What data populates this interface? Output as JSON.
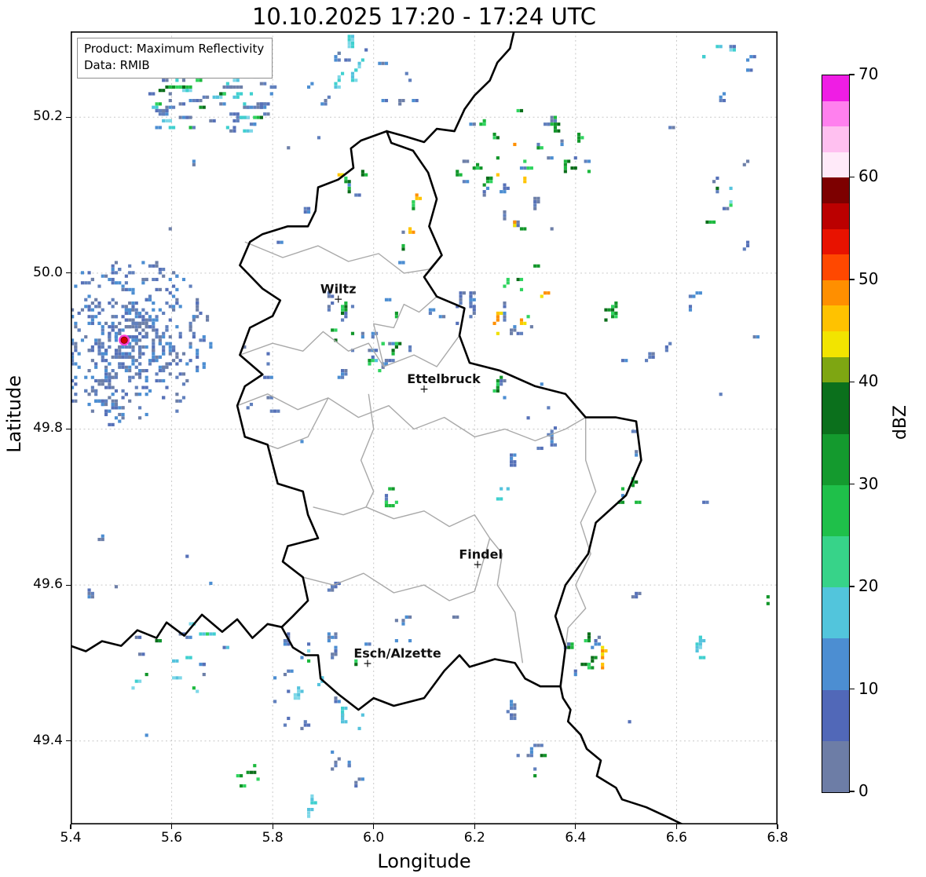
{
  "title": "10.10.2025 17:20 - 17:24 UTC",
  "info_box": {
    "product": "Product: Maximum Reflectivity",
    "data": "Data: RMIB"
  },
  "axes": {
    "xlabel": "Longitude",
    "ylabel": "Latitude",
    "xlim": [
      5.4,
      6.8
    ],
    "ylim": [
      49.293,
      50.31
    ],
    "xticks": [
      "5.4",
      "5.6",
      "5.8",
      "6.0",
      "6.2",
      "6.4",
      "6.6",
      "6.8"
    ],
    "yticks": [
      "49.4",
      "49.6",
      "49.8",
      "50.0",
      "50.2"
    ],
    "grid_color": "#c9c9c9"
  },
  "colorbar": {
    "label": "dBZ",
    "min": 0,
    "max": 70,
    "ticks": [
      0,
      10,
      20,
      30,
      40,
      50,
      60,
      70
    ],
    "segments": [
      [
        0,
        5,
        "#6d7da6"
      ],
      [
        5,
        10,
        "#5168b8"
      ],
      [
        10,
        15,
        "#4c8ed2"
      ],
      [
        15,
        20,
        "#52c5dc"
      ],
      [
        20,
        25,
        "#37d389"
      ],
      [
        25,
        30,
        "#1fc04a"
      ],
      [
        30,
        35,
        "#149a2e"
      ],
      [
        35,
        40,
        "#0b701c"
      ],
      [
        40,
        42.5,
        "#7ea612"
      ],
      [
        42.5,
        45,
        "#f2e400"
      ],
      [
        45,
        47.5,
        "#ffc200"
      ],
      [
        47.5,
        50,
        "#ff8f00"
      ],
      [
        50,
        52.5,
        "#ff4800"
      ],
      [
        52.5,
        55,
        "#e81200"
      ],
      [
        55,
        57.5,
        "#bb0000"
      ],
      [
        57.5,
        60,
        "#7d0000"
      ],
      [
        60,
        62.5,
        "#ffeaf9"
      ],
      [
        62.5,
        65,
        "#ffc0f0"
      ],
      [
        65,
        67.5,
        "#ff80ee"
      ],
      [
        67.5,
        70,
        "#ef1de4"
      ]
    ]
  },
  "map": {
    "cities": [
      {
        "name": "Wiltz",
        "lon": 5.93,
        "lat": 49.967,
        "label_dx": 0
      },
      {
        "name": "Ettelbruck",
        "lon": 6.1,
        "lat": 49.852,
        "label_dx": 25
      },
      {
        "name": "Findel",
        "lon": 6.206,
        "lat": 49.627,
        "label_dx": 4
      },
      {
        "name": "Esch/Alzette",
        "lon": 5.988,
        "lat": 49.5,
        "label_dx": 38
      }
    ],
    "radar_site": {
      "lon": 5.506,
      "lat": 49.914,
      "dot_color": "#d40000",
      "ring_color": "#ff3fd4"
    },
    "radar_rings": {
      "lon": 5.506,
      "lat": 49.914,
      "count": 880,
      "r_min": 12,
      "r_max": 108,
      "ring_step": 7,
      "keep": 0.5
    },
    "echo_palettes": {
      "b": [
        "#6180bd",
        "#5671b8",
        "#4c8ed2",
        "#6d7fa8"
      ],
      "c": [
        "#55c3dd",
        "#3fd0cf",
        "#7fd8e8"
      ],
      "g": [
        "#2fd45f",
        "#1cb93e",
        "#12962a",
        "#0b6e1a"
      ],
      "y": [
        "#f0e000",
        "#ffc400",
        "#ff9000"
      ]
    },
    "echo_clusters": [
      [
        5.548,
        5.797,
        50.184,
        50.265,
        70,
        "bbbbccg",
        8
      ],
      [
        5.615,
        5.703,
        50.265,
        50.3,
        8,
        "b",
        8
      ],
      [
        5.921,
        5.983,
        50.24,
        50.304,
        9,
        "bc",
        70
      ],
      [
        6.004,
        6.077,
        50.214,
        50.262,
        5,
        "b",
        70
      ],
      [
        5.925,
        5.975,
        50.095,
        50.145,
        6,
        "bgy",
        75
      ],
      [
        6.04,
        6.09,
        49.995,
        50.1,
        8,
        "bgy",
        80
      ],
      [
        6.147,
        6.357,
        50.053,
        50.209,
        30,
        "bbgggy",
        70
      ],
      [
        6.349,
        6.423,
        50.127,
        50.171,
        7,
        "bg",
        70
      ],
      [
        6.61,
        6.741,
        50.255,
        50.298,
        7,
        "bc",
        65
      ],
      [
        6.657,
        6.738,
        50.06,
        50.124,
        8,
        "gcb",
        70
      ],
      [
        6.616,
        6.644,
        49.953,
        49.98,
        3,
        "b",
        85
      ],
      [
        5.734,
        5.804,
        49.781,
        49.907,
        8,
        "b",
        20
      ],
      [
        5.901,
        6.123,
        49.867,
        49.973,
        24,
        "bbbgc",
        70
      ],
      [
        5.983,
        6.038,
        49.877,
        49.912,
        7,
        "ggb",
        70
      ],
      [
        6.123,
        6.201,
        49.927,
        49.966,
        7,
        "b",
        75
      ],
      [
        6.228,
        6.336,
        49.922,
        50.02,
        14,
        "ggbby",
        72
      ],
      [
        6.237,
        6.349,
        49.812,
        49.862,
        6,
        "bg",
        70
      ],
      [
        6.315,
        6.352,
        49.766,
        49.797,
        4,
        "b",
        70
      ],
      [
        6.455,
        6.492,
        49.936,
        49.963,
        5,
        "g",
        75
      ],
      [
        6.004,
        6.041,
        49.698,
        49.728,
        4,
        "bg",
        70
      ],
      [
        6.237,
        6.274,
        49.704,
        49.731,
        3,
        "c",
        70
      ],
      [
        6.486,
        6.517,
        49.701,
        49.736,
        5,
        "bg",
        70
      ],
      [
        5.512,
        5.714,
        49.466,
        49.555,
        22,
        "ggccb",
        15
      ],
      [
        5.801,
        5.979,
        49.416,
        49.537,
        28,
        "bbgc",
        70
      ],
      [
        6.035,
        6.069,
        49.527,
        49.559,
        5,
        "b",
        70
      ],
      [
        6.368,
        6.455,
        49.466,
        49.533,
        10,
        "ggby",
        75
      ],
      [
        6.237,
        6.274,
        49.426,
        49.459,
        4,
        "b",
        70
      ],
      [
        6.279,
        6.33,
        49.356,
        49.399,
        6,
        "gb",
        72
      ],
      [
        5.73,
        5.776,
        49.341,
        49.372,
        5,
        "g",
        20
      ],
      [
        5.913,
        5.963,
        49.364,
        49.392,
        5,
        "b",
        70
      ],
      [
        5.843,
        5.879,
        49.301,
        49.328,
        3,
        "c",
        70
      ],
      [
        6.766,
        6.803,
        49.577,
        49.6,
        3,
        "g",
        70
      ],
      [
        6.623,
        6.654,
        49.507,
        49.53,
        3,
        "c",
        70
      ],
      [
        5.42,
        6.78,
        49.31,
        50.29,
        40,
        "b",
        70
      ]
    ],
    "borders": {
      "country": [
        [
          [
            6.026,
            50.182
          ],
          [
            6.035,
            50.167
          ],
          [
            6.078,
            50.157
          ],
          [
            6.108,
            50.129
          ],
          [
            6.125,
            50.095
          ],
          [
            6.11,
            50.06
          ],
          [
            6.135,
            50.023
          ],
          [
            6.1,
            49.995
          ],
          [
            6.125,
            49.97
          ],
          [
            6.18,
            49.955
          ],
          [
            6.17,
            49.92
          ],
          [
            6.19,
            49.885
          ],
          [
            6.25,
            49.875
          ],
          [
            6.32,
            49.855
          ],
          [
            6.38,
            49.845
          ],
          [
            6.42,
            49.815
          ],
          [
            6.48,
            49.815
          ],
          [
            6.52,
            49.81
          ],
          [
            6.53,
            49.76
          ],
          [
            6.5,
            49.715
          ],
          [
            6.44,
            49.68
          ],
          [
            6.425,
            49.64
          ],
          [
            6.38,
            49.6
          ],
          [
            6.36,
            49.56
          ],
          [
            6.38,
            49.52
          ],
          [
            6.37,
            49.47
          ],
          [
            6.33,
            49.47
          ],
          [
            6.3,
            49.48
          ],
          [
            6.28,
            49.5
          ],
          [
            6.24,
            49.505
          ],
          [
            6.19,
            49.495
          ],
          [
            6.17,
            49.51
          ],
          [
            6.14,
            49.49
          ],
          [
            6.1,
            49.455
          ],
          [
            6.04,
            49.445
          ],
          [
            6.0,
            49.455
          ],
          [
            5.97,
            49.44
          ],
          [
            5.93,
            49.46
          ],
          [
            5.895,
            49.48
          ],
          [
            5.89,
            49.51
          ],
          [
            5.865,
            49.51
          ],
          [
            5.84,
            49.52
          ],
          [
            5.818,
            49.546
          ],
          [
            5.84,
            49.56
          ],
          [
            5.87,
            49.58
          ],
          [
            5.86,
            49.61
          ],
          [
            5.82,
            49.63
          ],
          [
            5.83,
            49.65
          ],
          [
            5.89,
            49.66
          ],
          [
            5.87,
            49.69
          ],
          [
            5.86,
            49.72
          ],
          [
            5.81,
            49.73
          ],
          [
            5.79,
            49.78
          ],
          [
            5.745,
            49.79
          ],
          [
            5.73,
            49.83
          ],
          [
            5.745,
            49.855
          ],
          [
            5.78,
            49.87
          ],
          [
            5.735,
            49.895
          ],
          [
            5.755,
            49.93
          ],
          [
            5.8,
            49.945
          ],
          [
            5.815,
            49.965
          ],
          [
            5.78,
            49.98
          ],
          [
            5.735,
            50.01
          ],
          [
            5.755,
            50.04
          ],
          [
            5.78,
            50.05
          ],
          [
            5.83,
            50.06
          ],
          [
            5.87,
            50.06
          ],
          [
            5.885,
            50.08
          ],
          [
            5.89,
            50.11
          ],
          [
            5.93,
            50.12
          ],
          [
            5.96,
            50.135
          ],
          [
            5.955,
            50.16
          ],
          [
            5.975,
            50.17
          ],
          [
            6.026,
            50.182
          ]
        ],
        [
          [
            6.026,
            50.182
          ],
          [
            6.065,
            50.175
          ],
          [
            6.1,
            50.168
          ],
          [
            6.125,
            50.185
          ],
          [
            6.16,
            50.182
          ],
          [
            6.18,
            50.21
          ],
          [
            6.2,
            50.228
          ],
          [
            6.23,
            50.247
          ],
          [
            6.245,
            50.27
          ],
          [
            6.27,
            50.288
          ],
          [
            6.278,
            50.31
          ]
        ],
        [
          [
            5.818,
            49.546
          ],
          [
            5.79,
            49.55
          ],
          [
            5.76,
            49.532
          ],
          [
            5.73,
            49.556
          ],
          [
            5.7,
            49.54
          ],
          [
            5.66,
            49.562
          ],
          [
            5.625,
            49.535
          ],
          [
            5.59,
            49.552
          ],
          [
            5.57,
            49.532
          ],
          [
            5.532,
            49.542
          ],
          [
            5.5,
            49.522
          ],
          [
            5.462,
            49.528
          ],
          [
            5.43,
            49.515
          ],
          [
            5.4,
            49.522
          ]
        ],
        [
          [
            6.37,
            49.47
          ],
          [
            6.375,
            49.455
          ],
          [
            6.39,
            49.44
          ],
          [
            6.385,
            49.425
          ],
          [
            6.41,
            49.408
          ],
          [
            6.422,
            49.39
          ],
          [
            6.45,
            49.375
          ],
          [
            6.442,
            49.355
          ],
          [
            6.48,
            49.34
          ],
          [
            6.492,
            49.325
          ],
          [
            6.54,
            49.315
          ],
          [
            6.58,
            49.303
          ],
          [
            6.612,
            49.293
          ]
        ]
      ],
      "internal": [
        [
          [
            5.745,
            50.04
          ],
          [
            5.82,
            50.02
          ],
          [
            5.89,
            50.035
          ],
          [
            5.95,
            50.015
          ],
          [
            6.01,
            50.025
          ],
          [
            6.06,
            50.0
          ],
          [
            6.11,
            50.005
          ],
          [
            6.135,
            50.023
          ]
        ],
        [
          [
            5.735,
            49.895
          ],
          [
            5.8,
            49.91
          ],
          [
            5.86,
            49.9
          ],
          [
            5.9,
            49.925
          ],
          [
            5.95,
            49.9
          ],
          [
            5.99,
            49.91
          ],
          [
            6.02,
            49.88
          ],
          [
            6.08,
            49.895
          ],
          [
            6.125,
            49.88
          ],
          [
            6.17,
            49.92
          ]
        ],
        [
          [
            6.125,
            49.97
          ],
          [
            6.09,
            49.95
          ],
          [
            6.06,
            49.96
          ],
          [
            6.04,
            49.93
          ],
          [
            6.0,
            49.935
          ],
          [
            6.02,
            49.88
          ]
        ],
        [
          [
            5.73,
            49.83
          ],
          [
            5.79,
            49.845
          ],
          [
            5.85,
            49.825
          ],
          [
            5.91,
            49.84
          ],
          [
            5.97,
            49.815
          ],
          [
            6.03,
            49.83
          ],
          [
            6.08,
            49.8
          ],
          [
            6.14,
            49.815
          ],
          [
            6.2,
            49.79
          ],
          [
            6.26,
            49.8
          ],
          [
            6.32,
            49.785
          ],
          [
            6.38,
            49.8
          ],
          [
            6.42,
            49.815
          ]
        ],
        [
          [
            5.99,
            49.845
          ],
          [
            6.0,
            49.8
          ],
          [
            5.975,
            49.76
          ],
          [
            6.0,
            49.72
          ],
          [
            5.985,
            49.7
          ]
        ],
        [
          [
            5.88,
            49.7
          ],
          [
            5.94,
            49.69
          ],
          [
            5.985,
            49.7
          ],
          [
            6.04,
            49.685
          ],
          [
            6.1,
            49.695
          ],
          [
            6.15,
            49.675
          ],
          [
            6.2,
            49.69
          ],
          [
            6.23,
            49.66
          ],
          [
            6.255,
            49.64
          ],
          [
            6.245,
            49.6
          ],
          [
            6.28,
            49.565
          ],
          [
            6.295,
            49.5
          ]
        ],
        [
          [
            5.86,
            49.61
          ],
          [
            5.92,
            49.6
          ],
          [
            5.98,
            49.615
          ],
          [
            6.04,
            49.59
          ],
          [
            6.1,
            49.6
          ],
          [
            6.15,
            49.58
          ],
          [
            6.2,
            49.592
          ],
          [
            6.23,
            49.66
          ]
        ],
        [
          [
            6.42,
            49.815
          ],
          [
            6.42,
            49.76
          ],
          [
            6.44,
            49.72
          ],
          [
            6.41,
            49.68
          ],
          [
            6.43,
            49.64
          ],
          [
            6.4,
            49.6
          ],
          [
            6.42,
            49.57
          ],
          [
            6.385,
            49.545
          ],
          [
            6.38,
            49.52
          ]
        ],
        [
          [
            5.745,
            49.79
          ],
          [
            5.81,
            49.775
          ],
          [
            5.87,
            49.79
          ],
          [
            5.91,
            49.84
          ]
        ]
      ]
    }
  }
}
